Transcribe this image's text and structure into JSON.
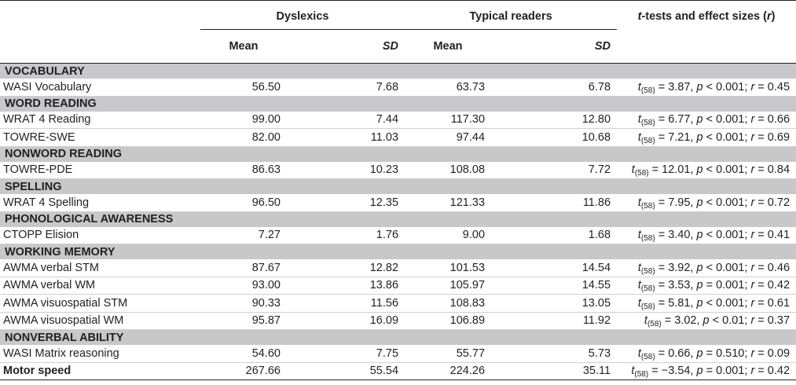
{
  "header": {
    "group1": "Dyslexics",
    "group2": "Typical readers",
    "stats_title_prefix": "t",
    "stats_title_mid": "-tests and effect sizes (",
    "stats_title_r": "r",
    "stats_title_end": ")",
    "mean": "Mean",
    "sd": "SD"
  },
  "sections": [
    {
      "title": "VOCABULARY",
      "rows": [
        {
          "label": "WASI Vocabulary",
          "d_mean": "56.50",
          "d_sd": "7.68",
          "t_mean": "63.73",
          "t_sd": "6.78",
          "df": "(58)",
          "tval": " = 3.87, ",
          "pval": " < 0.001; ",
          "rval": " = 0.45"
        }
      ]
    },
    {
      "title": "WORD READING",
      "rows": [
        {
          "label": "WRAT 4 Reading",
          "d_mean": "99.00",
          "d_sd": "7.44",
          "t_mean": "117.30",
          "t_sd": "12.80",
          "df": "(58)",
          "tval": " = 6.77, ",
          "pval": " < 0.001; ",
          "rval": " = 0.66"
        },
        {
          "label": "TOWRE-SWE",
          "d_mean": "82.00",
          "d_sd": "11.03",
          "t_mean": "97.44",
          "t_sd": "10.68",
          "df": "(58)",
          "tval": " = 7.21, ",
          "pval": " < 0.001; ",
          "rval": " = 0.69"
        }
      ]
    },
    {
      "title": "NONWORD READING",
      "rows": [
        {
          "label": "TOWRE-PDE",
          "d_mean": "86.63",
          "d_sd": "10.23",
          "t_mean": "108.08",
          "t_sd": "7.72",
          "df": "(58)",
          "tval": " = 12.01, ",
          "pval": " < 0.001; ",
          "rval": " = 0.84"
        }
      ]
    },
    {
      "title": "SPELLING",
      "rows": [
        {
          "label": "WRAT 4 Spelling",
          "d_mean": "96.50",
          "d_sd": "12.35",
          "t_mean": "121.33",
          "t_sd": "11.86",
          "df": "(58)",
          "tval": " = 7.95, ",
          "pval": " < 0.001; ",
          "rval": " = 0.72"
        }
      ]
    },
    {
      "title": "PHONOLOGICAL AWARENESS",
      "rows": [
        {
          "label": "CTOPP Elision",
          "d_mean": "7.27",
          "d_sd": "1.76",
          "t_mean": "9.00",
          "t_sd": "1.68",
          "df": "(58)",
          "tval": " = 3.40, ",
          "pval": " < 0.001; ",
          "rval": " = 0.41"
        }
      ]
    },
    {
      "title": "WORKING MEMORY",
      "rows": [
        {
          "label": "AWMA verbal STM",
          "d_mean": "87.67",
          "d_sd": "12.82",
          "t_mean": "101.53",
          "t_sd": "14.54",
          "df": "(58)",
          "tval": " = 3.92, ",
          "pval": " < 0.001; ",
          "rval": " = 0.46"
        },
        {
          "label": "AWMA verbal WM",
          "d_mean": "93.00",
          "d_sd": "13.86",
          "t_mean": "105.97",
          "t_sd": "14.55",
          "df": "(58)",
          "tval": " = 3.53, ",
          "pval": " = 0.001; ",
          "rval": " = 0.42"
        },
        {
          "label": "AWMA visuospatial STM",
          "d_mean": "90.33",
          "d_sd": "11.56",
          "t_mean": "108.83",
          "t_sd": "13.05",
          "df": "(58)",
          "tval": " = 5.81, ",
          "pval": " < 0.001; ",
          "rval": " = 0.61"
        },
        {
          "label": "AWMA visuospatial WM",
          "d_mean": "95.87",
          "d_sd": "16.09",
          "t_mean": "106.89",
          "t_sd": "11.92",
          "df": "(58)",
          "tval": " = 3.02, ",
          "pval": " < 0.01; ",
          "rval": " = 0.37"
        }
      ]
    },
    {
      "title": "NONVERBAL ABILITY",
      "rows": [
        {
          "label": "WASI Matrix reasoning",
          "d_mean": "54.60",
          "d_sd": "7.75",
          "t_mean": "55.77",
          "t_sd": "5.73",
          "df": "(58)",
          "tval": " = 0.66, ",
          "pval": " = 0.510; ",
          "rval": " = 0.09"
        }
      ]
    }
  ],
  "motor": {
    "label": "Motor speed",
    "d_mean": "267.66",
    "d_sd": "55.54",
    "t_mean": "224.26",
    "t_sd": "35.11",
    "df": "(58)",
    "tval": " = −3.54, ",
    "pval": " = 0.001; ",
    "rval": " = 0.42"
  }
}
